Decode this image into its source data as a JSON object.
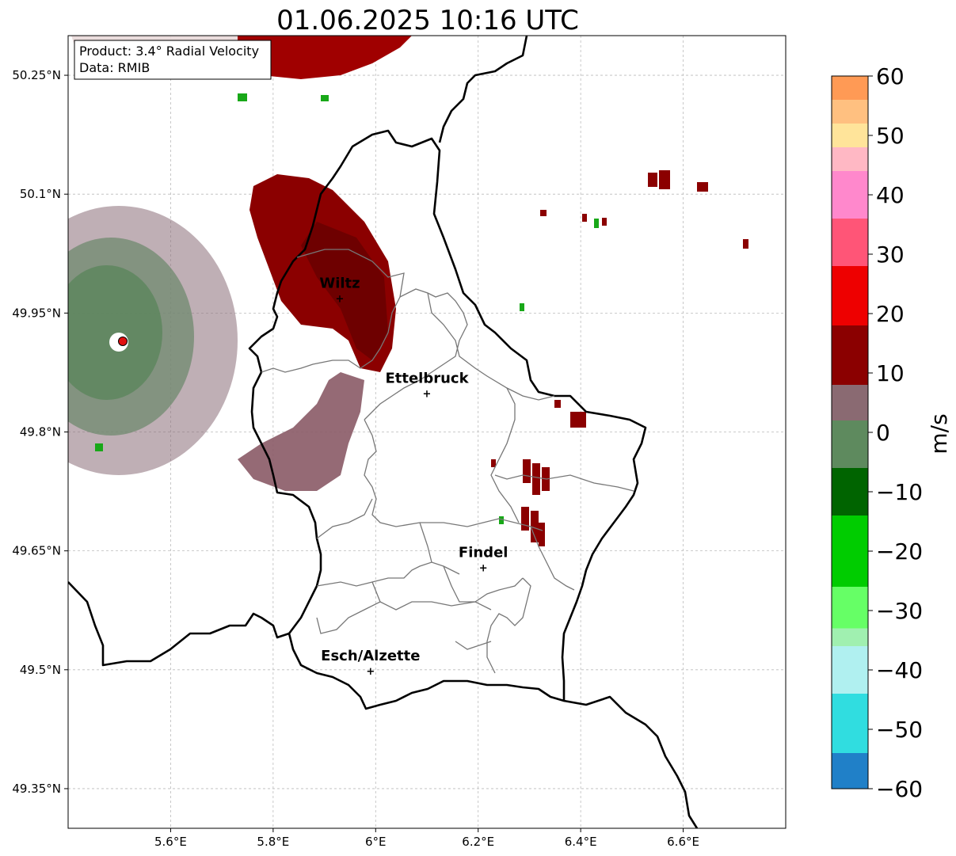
{
  "title": "01.06.2025 10:16 UTC",
  "info": {
    "product": "Product: 3.4° Radial Velocity",
    "data": "Data: RMIB"
  },
  "map": {
    "lon_range": [
      5.4,
      6.8
    ],
    "lat_range": [
      49.3,
      50.3
    ],
    "lon_ticks": [
      {
        "value": 5.6,
        "label": "5.6°E"
      },
      {
        "value": 5.8,
        "label": "5.8°E"
      },
      {
        "value": 6.0,
        "label": "6°E"
      },
      {
        "value": 6.2,
        "label": "6.2°E"
      },
      {
        "value": 6.4,
        "label": "6.4°E"
      },
      {
        "value": 6.6,
        "label": "6.6°E"
      }
    ],
    "lat_ticks": [
      {
        "value": 50.25,
        "label": "50.25°N"
      },
      {
        "value": 50.1,
        "label": "50.1°N"
      },
      {
        "value": 49.95,
        "label": "49.95°N"
      },
      {
        "value": 49.8,
        "label": "49.8°N"
      },
      {
        "value": 49.65,
        "label": "49.65°N"
      },
      {
        "value": 49.5,
        "label": "49.5°N"
      },
      {
        "value": 49.35,
        "label": "49.35°N"
      }
    ],
    "grid": true,
    "cities": [
      {
        "name": "Wiltz",
        "lon": 5.93,
        "lat": 49.97
      },
      {
        "name": "Ettelbruck",
        "lon": 6.1,
        "lat": 49.85
      },
      {
        "name": "Findel",
        "lon": 6.21,
        "lat": 49.63
      },
      {
        "name": "Esch/Alzette",
        "lon": 5.99,
        "lat": 49.5
      }
    ],
    "radar_site": {
      "lon": 5.51,
      "lat": 49.915
    }
  },
  "colorbar": {
    "unit": "m/s",
    "min": -60,
    "max": 60,
    "ticks": [
      60,
      50,
      40,
      30,
      20,
      10,
      0,
      -10,
      -20,
      -30,
      -40,
      -50,
      -60
    ],
    "tick_labels": [
      "60",
      "50",
      "40",
      "30",
      "20",
      "10",
      "0",
      "−10",
      "−20",
      "−30",
      "−40",
      "−50",
      "−60"
    ],
    "colors": {
      "top": "#ff9a55",
      "orange": "#ffc080",
      "yellow": "#ffe49a",
      "pink_light": "#ffb8c4",
      "pink": "#ff88cc",
      "pink_red": "#ff5577",
      "red": "#ee0000",
      "dark_red": "#8b0000",
      "mauve": "#8a6a72",
      "gray_green": "#5e8a5e",
      "dark_green": "#006400",
      "green": "#00cc00",
      "light_green": "#66ff66",
      "pale_green": "#a0f0b0",
      "pale_cyan": "#b0f0f0",
      "cyan": "#30dde0",
      "blue": "#2080c8"
    }
  }
}
